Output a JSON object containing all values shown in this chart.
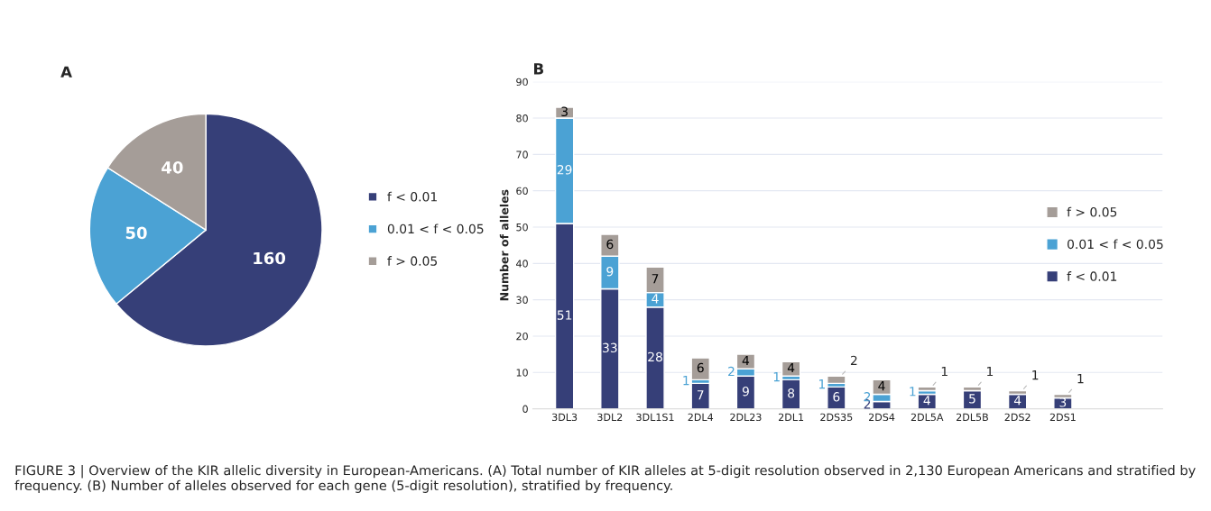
{
  "chart_data": [
    {
      "type": "pie",
      "title": "A",
      "categories": [
        "f < 0.01",
        "0.01 < f < 0.05",
        "f > 0.05"
      ],
      "values": [
        160,
        50,
        40
      ],
      "colors": [
        "#363f78",
        "#4ba2d4",
        "#a59d98"
      ],
      "data_labels": true,
      "legend": "right",
      "annotations": [
        "FIGURE 3 | Overview of the KIR allelic diversity in European-Americans. (A) Total number of KIR alleles at 5-digit resolution observed in 2,130 European Americans and stratified by frequency. (B) Number of alleles observed for each gene (5-digit resolution), stratified by frequency."
      ]
    },
    {
      "type": "bar",
      "title": "B",
      "ylabel": "Number of alleles",
      "stacked": true,
      "data_labels": true,
      "legend": "right",
      "grid": "y",
      "categories": [
        "3DL3",
        "3DL2",
        "3DL1S1",
        "2DL4",
        "2DL23",
        "2DL1",
        "2DS35",
        "2DS4",
        "2DL5A",
        "2DL5B",
        "2DS2",
        "2DS1"
      ],
      "ylim": [
        0,
        90
      ],
      "yticks": [
        0,
        10,
        20,
        30,
        40,
        50,
        60,
        70,
        80,
        90
      ],
      "series": [
        {
          "name": "f < 0.01",
          "color": "#363f78",
          "values": [
            51,
            33,
            28,
            7,
            9,
            8,
            6,
            2,
            4,
            5,
            4,
            3
          ]
        },
        {
          "name": "0.01 < f < 0.05",
          "color": "#4ba2d4",
          "values": [
            29,
            9,
            4,
            1,
            2,
            1,
            1,
            2,
            1,
            null,
            null,
            null
          ]
        },
        {
          "name": "f > 0.05",
          "color": "#a59d98",
          "values": [
            3,
            6,
            7,
            6,
            4,
            4,
            2,
            4,
            1,
            1,
            1,
            1
          ]
        }
      ]
    }
  ]
}
